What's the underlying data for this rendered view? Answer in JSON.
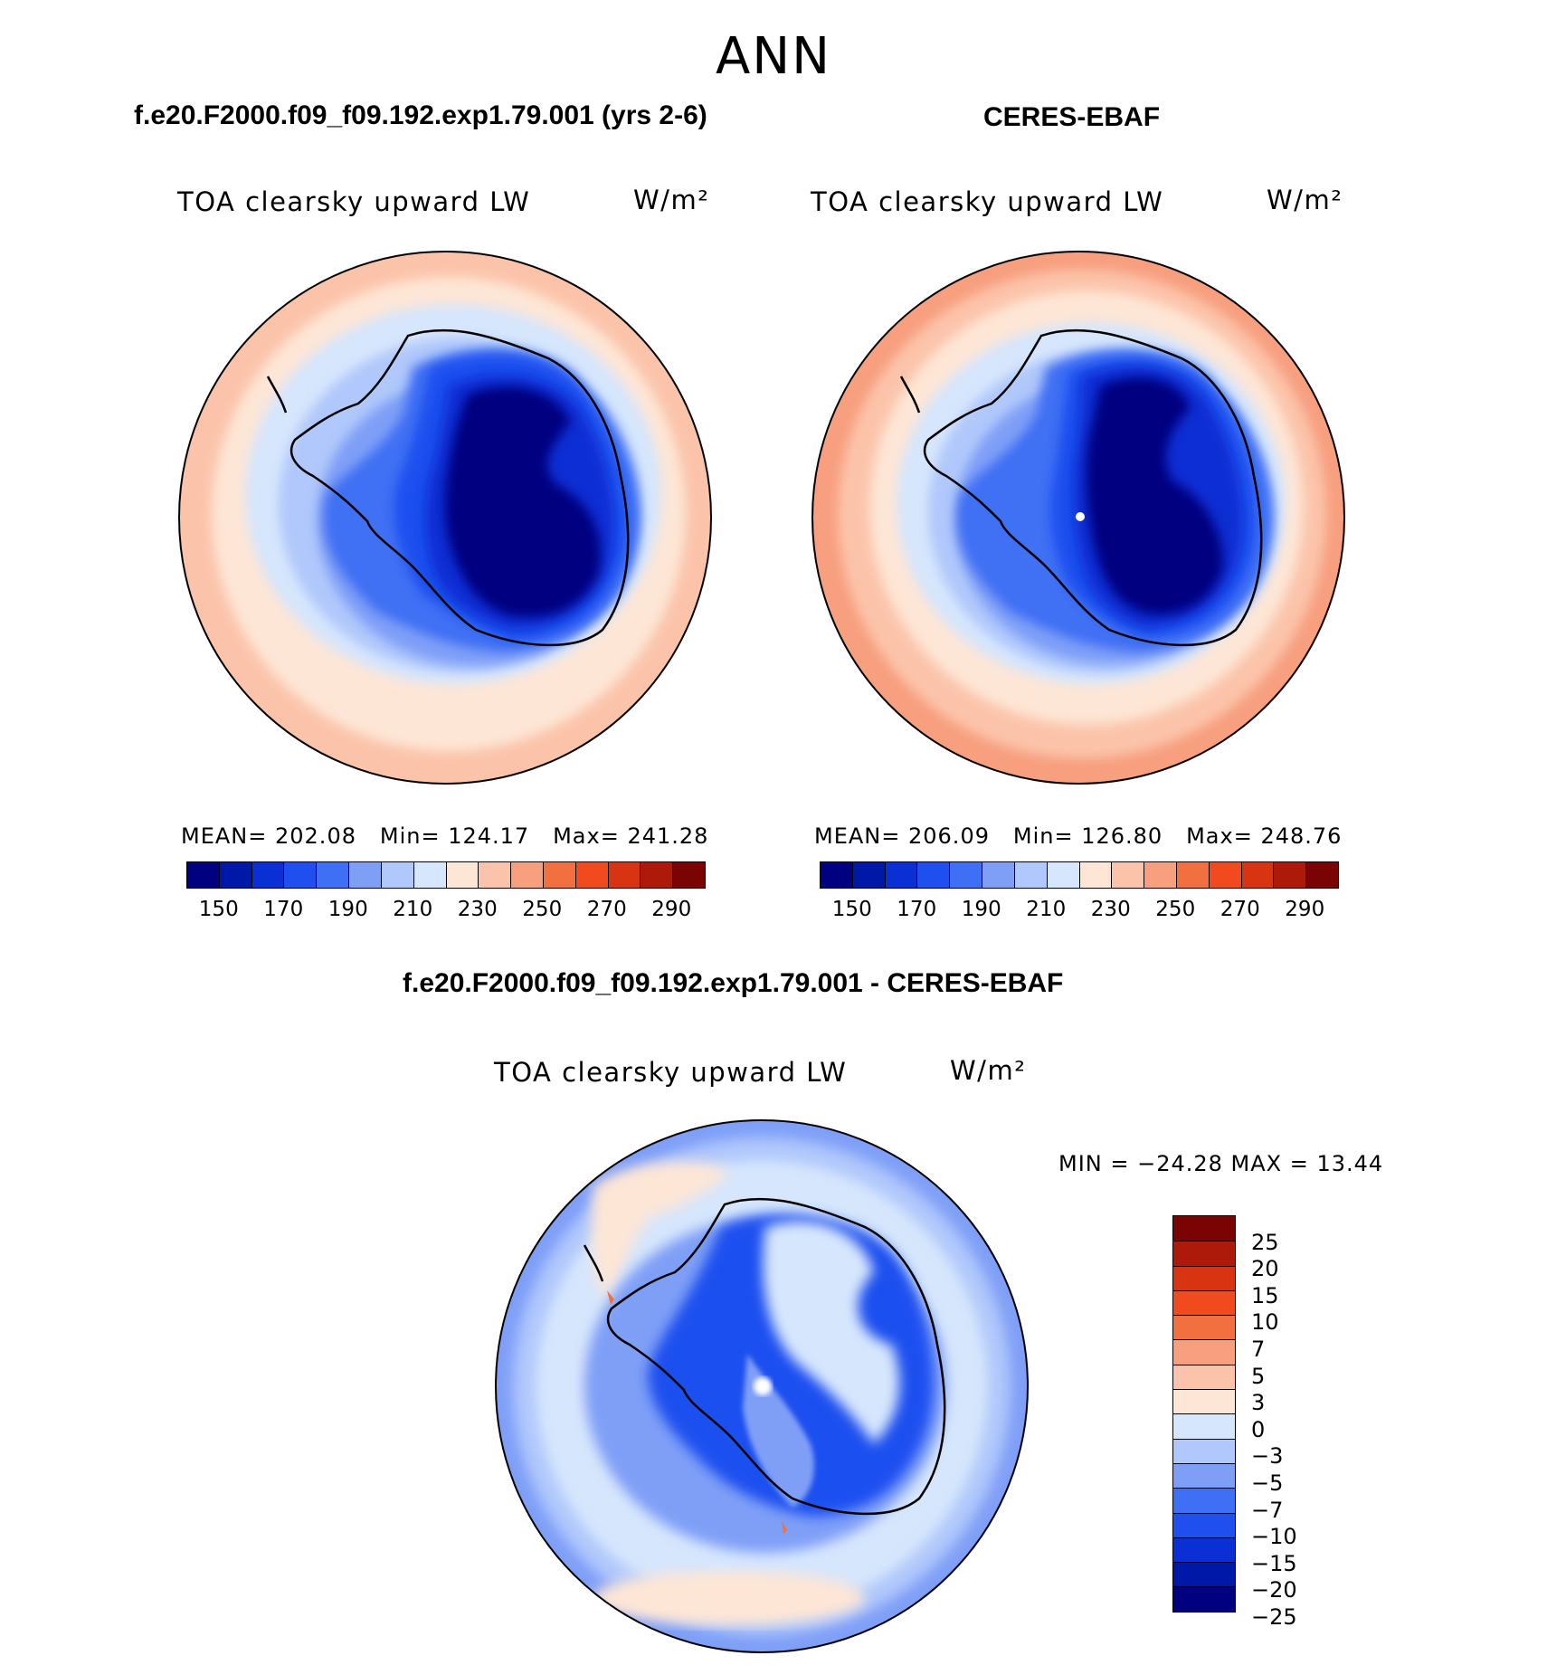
{
  "page": {
    "season": "ANN",
    "units_html": "W/m²"
  },
  "panels": {
    "model": {
      "title": "f.e20.F2000.f09_f09.192.exp1.79.001 (yrs 2-6)",
      "variable": "TOA clearsky upward LW",
      "units": "W/m²",
      "stats": {
        "mean_label": "MEAN=",
        "mean": "202.08",
        "min_label": "Min=",
        "min": "124.17",
        "max_label": "Max=",
        "max": "241.28"
      }
    },
    "obs": {
      "title": "CERES-EBAF",
      "variable": "TOA clearsky upward LW",
      "units": "W/m²",
      "stats": {
        "mean_label": "MEAN=",
        "mean": "206.09",
        "min_label": "Min=",
        "min": "126.80",
        "max_label": "Max=",
        "max": "248.76"
      }
    },
    "diff": {
      "title": "f.e20.F2000.f09_f09.192.exp1.79.001 - CERES-EBAF",
      "variable": "TOA clearsky upward LW",
      "units": "W/m²",
      "minmax": "MIN = −24.28 MAX =   13.44"
    }
  },
  "colorbar_main": {
    "colors": [
      "#000080",
      "#0018a8",
      "#0a2fd4",
      "#1f4fef",
      "#3f6ff4",
      "#7f9ff7",
      "#b0c8fb",
      "#d6e6fc",
      "#fde6d6",
      "#fbc4aa",
      "#f79f7f",
      "#f2703f",
      "#f04a1e",
      "#d93411",
      "#ad1a09",
      "#7a0303"
    ],
    "labels": [
      "150",
      "170",
      "190",
      "210",
      "230",
      "250",
      "270",
      "290"
    ]
  },
  "colorbar_diff": {
    "colors": [
      "#7a0303",
      "#ad1a09",
      "#d93411",
      "#f04a1e",
      "#f2703f",
      "#f79f7f",
      "#fbc4aa",
      "#fde6d6",
      "#d6e6fc",
      "#b0c8fb",
      "#7f9ff7",
      "#3f6ff4",
      "#1f4fef",
      "#0a2fd4",
      "#0018a8",
      "#000080"
    ],
    "labels": [
      "25",
      "20",
      "15",
      "10",
      "7",
      "5",
      "3",
      "0",
      "−3",
      "−5",
      "−7",
      "−10",
      "−15",
      "−20",
      "−25"
    ]
  }
}
